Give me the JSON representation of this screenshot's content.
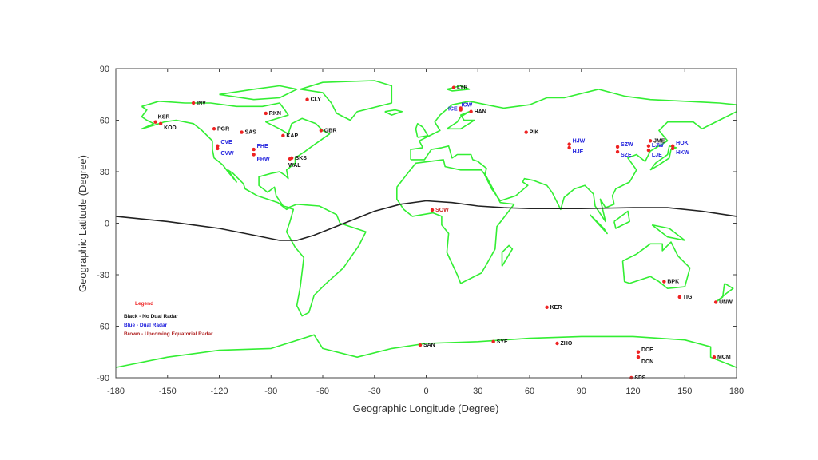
{
  "chart_data": {
    "type": "scatter",
    "title": "",
    "xlabel": "Geographic Longitude (Degree)",
    "ylabel": "Geographic Latitude (Degree)",
    "xlim": [
      -180,
      180
    ],
    "ylim": [
      -90,
      90
    ],
    "xticks": [
      -180,
      -150,
      -120,
      -90,
      -60,
      -30,
      0,
      30,
      60,
      90,
      120,
      150,
      180
    ],
    "yticks": [
      -90,
      -60,
      -30,
      0,
      30,
      60,
      90
    ],
    "grid": false,
    "colors": {
      "coastline": "#33ee33",
      "marker": "#ee2222",
      "black": "#111111",
      "blue": "#2222dd",
      "brown": "#cc2222",
      "equator_line": "#222222"
    },
    "legend": {
      "title": "Legend",
      "entries": [
        "Black - No Dual Radar",
        "Blue - Dual Radar",
        "Brown - Upcoming Equatorial Radar"
      ],
      "placement": "bottom-left"
    },
    "magnetic_equator": [
      [
        -180,
        4
      ],
      [
        -150,
        1
      ],
      [
        -120,
        -3
      ],
      [
        -100,
        -7
      ],
      [
        -85,
        -10
      ],
      [
        -75,
        -10
      ],
      [
        -65,
        -7
      ],
      [
        -55,
        -3
      ],
      [
        -45,
        1
      ],
      [
        -30,
        7
      ],
      [
        -15,
        11
      ],
      [
        0,
        13
      ],
      [
        15,
        12
      ],
      [
        30,
        10
      ],
      [
        45,
        9
      ],
      [
        60,
        8.5
      ],
      [
        90,
        8.5
      ],
      [
        120,
        9
      ],
      [
        140,
        9
      ],
      [
        160,
        7
      ],
      [
        180,
        4
      ]
    ],
    "sites": [
      {
        "code": "KSR",
        "lon": -157,
        "lat": 59,
        "group": "black"
      },
      {
        "code": "KOD",
        "lon": -154,
        "lat": 58,
        "group": "black"
      },
      {
        "code": "INV",
        "lon": -135,
        "lat": 70,
        "group": "black"
      },
      {
        "code": "PGR",
        "lon": -123,
        "lat": 55,
        "group": "black"
      },
      {
        "code": "SAS",
        "lon": -107,
        "lat": 53,
        "group": "black"
      },
      {
        "code": "RKN",
        "lon": -93,
        "lat": 64,
        "group": "black"
      },
      {
        "code": "CLY",
        "lon": -69,
        "lat": 72,
        "group": "black"
      },
      {
        "code": "KAP",
        "lon": -83,
        "lat": 51,
        "group": "black"
      },
      {
        "code": "GBR",
        "lon": -61,
        "lat": 54,
        "group": "black"
      },
      {
        "code": "CVE",
        "lon": -121,
        "lat": 45,
        "group": "blue"
      },
      {
        "code": "CVW",
        "lon": -121,
        "lat": 43.5,
        "group": "blue"
      },
      {
        "code": "FHE",
        "lon": -100,
        "lat": 43,
        "group": "blue"
      },
      {
        "code": "FHW",
        "lon": -100,
        "lat": 40,
        "group": "blue"
      },
      {
        "code": "BKS",
        "lon": -78,
        "lat": 38,
        "group": "black"
      },
      {
        "code": "WAL",
        "lon": -79,
        "lat": 37.5,
        "group": "black"
      },
      {
        "code": "LYR",
        "lon": 16,
        "lat": 79,
        "group": "black"
      },
      {
        "code": "ICE",
        "lon": 20,
        "lat": 67,
        "group": "blue"
      },
      {
        "code": "ICW",
        "lon": 20,
        "lat": 66,
        "group": "blue"
      },
      {
        "code": "HAN",
        "lon": 26,
        "lat": 65,
        "group": "black"
      },
      {
        "code": "PIK",
        "lon": 58,
        "lat": 53,
        "group": "black"
      },
      {
        "code": "HJW",
        "lon": 83,
        "lat": 46,
        "group": "blue"
      },
      {
        "code": "HJE",
        "lon": 83,
        "lat": 44,
        "group": "blue"
      },
      {
        "code": "SZW",
        "lon": 111,
        "lat": 44.5,
        "group": "blue"
      },
      {
        "code": "SZE",
        "lon": 111,
        "lat": 41.6,
        "group": "blue"
      },
      {
        "code": "JME",
        "lon": 130,
        "lat": 48,
        "group": "black"
      },
      {
        "code": "LJW",
        "lon": 129,
        "lat": 45,
        "group": "blue"
      },
      {
        "code": "LJE",
        "lon": 129,
        "lat": 42.5,
        "group": "blue"
      },
      {
        "code": "HOK",
        "lon": 143,
        "lat": 45,
        "group": "blue"
      },
      {
        "code": "HKW",
        "lon": 143,
        "lat": 43.5,
        "group": "blue"
      },
      {
        "code": "SOW",
        "lon": 3.5,
        "lat": 7.7,
        "group": "brown"
      },
      {
        "code": "KER",
        "lon": 70,
        "lat": -49,
        "group": "black"
      },
      {
        "code": "BPK",
        "lon": 138,
        "lat": -34,
        "group": "black"
      },
      {
        "code": "TIG",
        "lon": 147,
        "lat": -43,
        "group": "black"
      },
      {
        "code": "UNW",
        "lon": 168,
        "lat": -46,
        "group": "black"
      },
      {
        "code": "ZHO",
        "lon": 76,
        "lat": -70,
        "group": "black"
      },
      {
        "code": "SYE",
        "lon": 39,
        "lat": -69,
        "group": "black"
      },
      {
        "code": "SAN",
        "lon": -3.5,
        "lat": -71,
        "group": "black"
      },
      {
        "code": "DCE",
        "lon": 123,
        "lat": -75,
        "group": "black"
      },
      {
        "code": "DCN",
        "lon": 123,
        "lat": -78,
        "group": "black"
      },
      {
        "code": "MCM",
        "lon": 167,
        "lat": -78,
        "group": "black"
      },
      {
        "code": "SPS",
        "lon": 119,
        "lat": -90,
        "group": "black"
      }
    ]
  }
}
